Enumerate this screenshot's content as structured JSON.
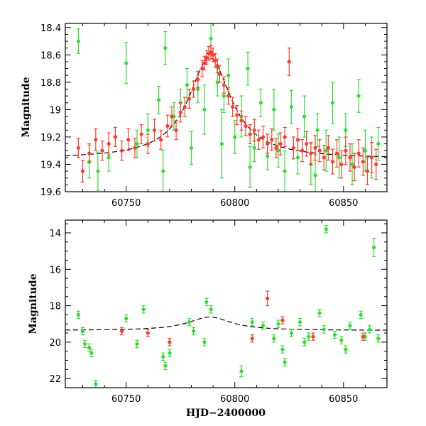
{
  "chart_data": [
    {
      "type": "scatter",
      "panel": "top",
      "xlabel": "",
      "ylabel": "Magnitude",
      "xlim": [
        60722,
        60870
      ],
      "ylim": [
        19.6,
        18.37
      ],
      "y_inverted": true,
      "xticks": [
        60750,
        60800,
        60850
      ],
      "yticks": [
        18.4,
        18.6,
        18.8,
        19,
        19.2,
        19.4,
        19.6
      ],
      "ytick_labels": [
        "18.4",
        "18.6",
        "18.8",
        "19",
        "19.2",
        "19.4",
        "19.6"
      ],
      "series": [
        {
          "color": "#33dd33",
          "points": [
            [
              60728,
              18.5,
              0.09
            ],
            [
              60733,
              19.38,
              0.12
            ],
            [
              60737,
              19.45,
              0.14
            ],
            [
              60742,
              19.35,
              0.1
            ],
            [
              60750,
              18.66,
              0.15
            ],
            [
              60755,
              19.25,
              0.1
            ],
            [
              60760,
              19.15,
              0.12
            ],
            [
              60765,
              18.93,
              0.1
            ],
            [
              60768,
              18.55,
              0.12
            ],
            [
              60772,
              19.05,
              0.1
            ],
            [
              60775,
              18.95,
              0.1
            ],
            [
              60778,
              18.82,
              0.12
            ],
            [
              60780,
              19.28,
              0.12
            ],
            [
              60783,
              18.85,
              0.1
            ],
            [
              60786,
              19.0,
              0.18
            ],
            [
              60789,
              18.48,
              0.12
            ],
            [
              60792,
              18.8,
              0.1
            ],
            [
              60794,
              19.25,
              0.25
            ],
            [
              60797,
              18.75,
              0.12
            ],
            [
              60800,
              19.2,
              0.12
            ],
            [
              60803,
              19.05,
              0.15
            ],
            [
              60806,
              18.7,
              0.12
            ],
            [
              60809,
              19.28,
              0.1
            ],
            [
              60812,
              18.95,
              0.1
            ],
            [
              60815,
              19.34,
              0.1
            ],
            [
              60818,
              19.0,
              0.15
            ],
            [
              60820,
              19.3,
              0.12
            ],
            [
              60823,
              19.45,
              0.15
            ],
            [
              60826,
              18.98,
              0.12
            ],
            [
              60829,
              19.35,
              0.12
            ],
            [
              60832,
              19.05,
              0.15
            ],
            [
              60835,
              19.4,
              0.15
            ],
            [
              60838,
              19.15,
              0.12
            ],
            [
              60842,
              19.3,
              0.15
            ],
            [
              60845,
              18.95,
              0.15
            ],
            [
              60848,
              19.35,
              0.15
            ],
            [
              60851,
              19.15,
              0.12
            ],
            [
              60854,
              19.4,
              0.15
            ],
            [
              60857,
              18.9,
              0.12
            ],
            [
              60860,
              19.3,
              0.15
            ],
            [
              60863,
              19.35,
              0.15
            ],
            [
              60866,
              19.25,
              0.12
            ],
            [
              60767,
              19.45,
              0.15
            ],
            [
              60795,
              18.9,
              0.12
            ],
            [
              60807,
              19.42,
              0.15
            ],
            [
              60837,
              19.48,
              0.15
            ]
          ]
        },
        {
          "color": "#ff3b2a",
          "points": [
            [
              60728,
              19.28,
              0.07
            ],
            [
              60730,
              19.45,
              0.08
            ],
            [
              60733,
              19.32,
              0.07
            ],
            [
              60736,
              19.22,
              0.08
            ],
            [
              60739,
              19.3,
              0.07
            ],
            [
              60742,
              19.25,
              0.08
            ],
            [
              60745,
              19.2,
              0.07
            ],
            [
              60748,
              19.3,
              0.07
            ],
            [
              60751,
              19.22,
              0.08
            ],
            [
              60754,
              19.28,
              0.07
            ],
            [
              60757,
              19.18,
              0.07
            ],
            [
              60760,
              19.25,
              0.07
            ],
            [
              60763,
              19.15,
              0.08
            ],
            [
              60766,
              19.22,
              0.07
            ],
            [
              60769,
              19.12,
              0.08
            ],
            [
              60771,
              19.05,
              0.07
            ],
            [
              60773,
              19.15,
              0.07
            ],
            [
              60775,
              19.02,
              0.07
            ],
            [
              60777,
              18.98,
              0.07
            ],
            [
              60779,
              18.92,
              0.07
            ],
            [
              60781,
              18.85,
              0.06
            ],
            [
              60783,
              18.78,
              0.06
            ],
            [
              60785,
              18.7,
              0.06
            ],
            [
              60786,
              18.66,
              0.05
            ],
            [
              60787,
              18.62,
              0.05
            ],
            [
              60788,
              18.59,
              0.05
            ],
            [
              60789,
              18.58,
              0.05
            ],
            [
              60790,
              18.6,
              0.05
            ],
            [
              60791,
              18.64,
              0.05
            ],
            [
              60792,
              18.68,
              0.05
            ],
            [
              60793,
              18.74,
              0.06
            ],
            [
              60795,
              18.82,
              0.06
            ],
            [
              60797,
              18.9,
              0.06
            ],
            [
              60799,
              18.98,
              0.07
            ],
            [
              60801,
              19.04,
              0.07
            ],
            [
              60803,
              19.08,
              0.07
            ],
            [
              60805,
              19.12,
              0.07
            ],
            [
              60807,
              19.18,
              0.07
            ],
            [
              60809,
              19.15,
              0.08
            ],
            [
              60811,
              19.22,
              0.07
            ],
            [
              60813,
              19.2,
              0.08
            ],
            [
              60815,
              19.25,
              0.07
            ],
            [
              60817,
              19.22,
              0.08
            ],
            [
              60819,
              19.28,
              0.07
            ],
            [
              60821,
              19.25,
              0.08
            ],
            [
              60823,
              19.2,
              0.07
            ],
            [
              60825,
              18.65,
              0.1
            ],
            [
              60827,
              19.28,
              0.08
            ],
            [
              60829,
              19.22,
              0.08
            ],
            [
              60831,
              19.3,
              0.08
            ],
            [
              60833,
              19.25,
              0.09
            ],
            [
              60835,
              19.32,
              0.08
            ],
            [
              60837,
              19.28,
              0.09
            ],
            [
              60839,
              19.3,
              0.08
            ],
            [
              60841,
              19.35,
              0.09
            ],
            [
              60843,
              19.28,
              0.09
            ],
            [
              60845,
              19.38,
              0.09
            ],
            [
              60847,
              19.32,
              0.1
            ],
            [
              60849,
              19.4,
              0.1
            ],
            [
              60851,
              19.3,
              0.1
            ],
            [
              60853,
              19.35,
              0.1
            ],
            [
              60855,
              19.42,
              0.1
            ],
            [
              60857,
              19.32,
              0.1
            ],
            [
              60859,
              19.38,
              0.1
            ],
            [
              60861,
              19.45,
              0.1
            ],
            [
              60863,
              19.35,
              0.11
            ],
            [
              60865,
              19.4,
              0.11
            ]
          ]
        }
      ],
      "model_curve": {
        "color": "#000000",
        "style": "dashed",
        "baseline": 19.36,
        "peak_mag": 18.62,
        "peak_x": 60788.5,
        "width": 12
      }
    },
    {
      "type": "scatter",
      "panel": "bottom",
      "xlabel": "HJD−2400000",
      "ylabel": "Magnitude",
      "xlim": [
        60722,
        60870
      ],
      "ylim": [
        22.5,
        13.3
      ],
      "y_inverted": true,
      "xticks": [
        60750,
        60800,
        60850
      ],
      "yticks": [
        14,
        16,
        18,
        20,
        22
      ],
      "ytick_labels": [
        "14",
        "16",
        "18",
        "20",
        "22"
      ],
      "series": [
        {
          "color": "#33dd33",
          "points": [
            [
              60728,
              18.5,
              0.2
            ],
            [
              60730,
              19.4,
              0.2
            ],
            [
              60731,
              20.1,
              0.2
            ],
            [
              60733,
              20.3,
              0.2
            ],
            [
              60734,
              20.6,
              0.2
            ],
            [
              60736,
              22.3,
              0.2
            ],
            [
              60750,
              18.7,
              0.2
            ],
            [
              60755,
              20.1,
              0.2
            ],
            [
              60758,
              18.2,
              0.2
            ],
            [
              60767,
              20.8,
              0.2
            ],
            [
              60768,
              21.3,
              0.2
            ],
            [
              60770,
              20.6,
              0.2
            ],
            [
              60779,
              18.9,
              0.2
            ],
            [
              60781,
              19.4,
              0.2
            ],
            [
              60786,
              20.0,
              0.2
            ],
            [
              60787,
              17.8,
              0.2
            ],
            [
              60789,
              18.2,
              0.2
            ],
            [
              60803,
              21.6,
              0.3
            ],
            [
              60808,
              18.9,
              0.2
            ],
            [
              60813,
              19.1,
              0.2
            ],
            [
              60818,
              19.8,
              0.2
            ],
            [
              60820,
              19.0,
              0.2
            ],
            [
              60822,
              20.4,
              0.2
            ],
            [
              60823,
              21.1,
              0.2
            ],
            [
              60826,
              19.5,
              0.2
            ],
            [
              60830,
              18.9,
              0.2
            ],
            [
              60832,
              20.0,
              0.2
            ],
            [
              60834,
              19.7,
              0.2
            ],
            [
              60839,
              18.4,
              0.2
            ],
            [
              60841,
              19.3,
              0.2
            ],
            [
              60842,
              13.8,
              0.2
            ],
            [
              60846,
              19.6,
              0.2
            ],
            [
              60849,
              19.9,
              0.2
            ],
            [
              60851,
              20.4,
              0.2
            ],
            [
              60853,
              19.1,
              0.2
            ],
            [
              60858,
              18.5,
              0.2
            ],
            [
              60860,
              19.7,
              0.2
            ],
            [
              60862,
              19.3,
              0.2
            ],
            [
              60864,
              14.8,
              0.5
            ],
            [
              60866,
              19.8,
              0.2
            ]
          ]
        },
        {
          "color": "#ff3b2a",
          "points": [
            [
              60815,
              17.6,
              0.4
            ],
            [
              60808,
              19.8,
              0.2
            ],
            [
              60822,
              18.8,
              0.2
            ],
            [
              60836,
              19.7,
              0.2
            ],
            [
              60859,
              19.7,
              0.2
            ],
            [
              60760,
              19.5,
              0.2
            ],
            [
              60748,
              19.4,
              0.2
            ],
            [
              60770,
              20.0,
              0.2
            ]
          ]
        }
      ],
      "model_curve": {
        "color": "#000000",
        "style": "dashed",
        "baseline": 19.36,
        "peak_mag": 18.62,
        "peak_x": 60788.5,
        "width": 12
      }
    }
  ]
}
